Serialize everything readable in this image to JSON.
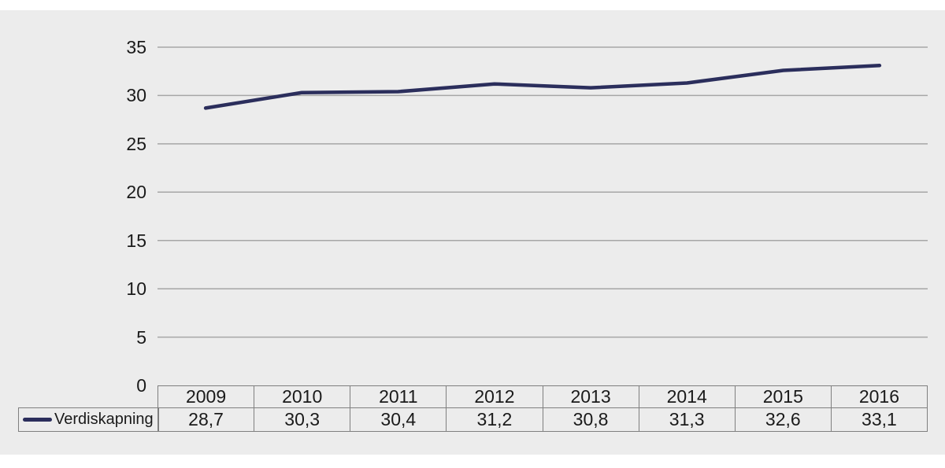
{
  "chart_data": {
    "type": "line",
    "title": "",
    "xlabel": "",
    "ylabel": "",
    "categories": [
      "2009",
      "2010",
      "2011",
      "2012",
      "2013",
      "2014",
      "2015",
      "2016"
    ],
    "series": [
      {
        "name": "Verdiskapning",
        "values": [
          28.7,
          30.3,
          30.4,
          31.2,
          30.8,
          31.3,
          32.6,
          33.1
        ],
        "display_values": [
          "28,7",
          "30,3",
          "30,4",
          "31,2",
          "30,8",
          "31,3",
          "32,6",
          "33,1"
        ],
        "color": "#2b2e5c"
      }
    ],
    "y_ticks": [
      0,
      5,
      10,
      15,
      20,
      25,
      30,
      35
    ],
    "ylim": [
      0,
      35
    ],
    "grid": true,
    "legend_position": "bottom-left-table"
  },
  "colors": {
    "panel_background": "#ECECEC",
    "page_background": "#ffffff",
    "line": "#2b2e5c",
    "gridline": "#a6a6a6",
    "table_border": "#7f7f7f",
    "text": "#1a1a1a"
  }
}
